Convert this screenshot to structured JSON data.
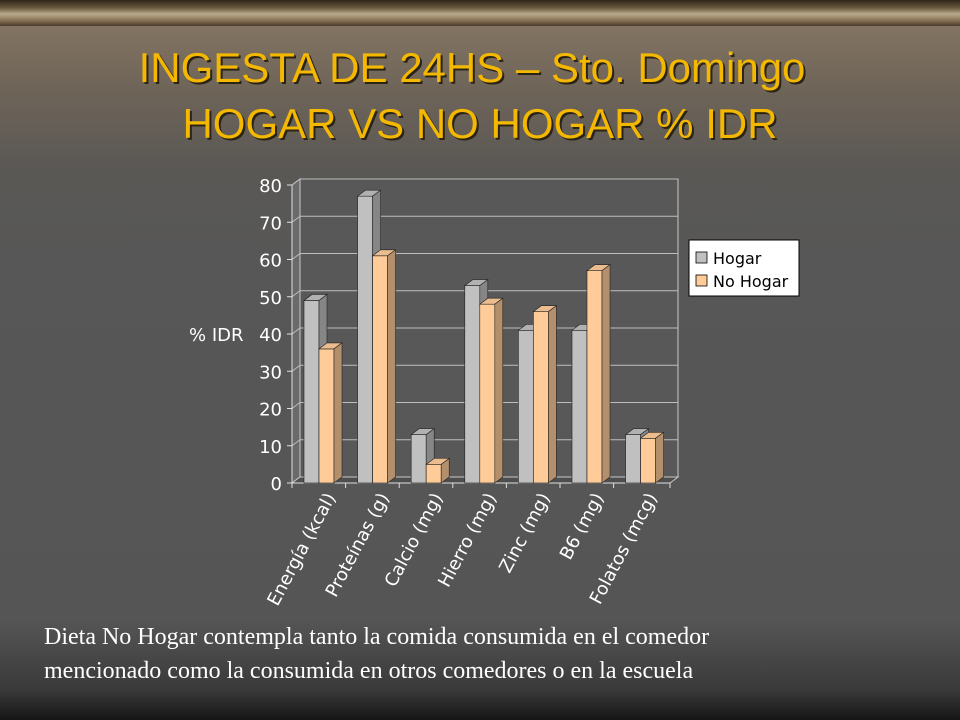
{
  "slide": {
    "title_line1": "INGESTA DE 24HS – Sto. Domingo",
    "title_line2": "HOGAR VS NO HOGAR % IDR",
    "footnote_line1": "Dieta No Hogar contempla tanto la comida consumida  en el comedor",
    "footnote_line2": "mencionado  como la consumida  en otros comedores o en la escuela"
  },
  "chart_data": {
    "type": "bar",
    "ylabel": "% IDR",
    "xlabel": "",
    "title": "",
    "ylim": [
      0,
      80
    ],
    "yticks": [
      "0",
      "10",
      "20",
      "30",
      "40",
      "50",
      "60",
      "70",
      "80"
    ],
    "categories": [
      "Energía (kcal)",
      "Proteínas (g)",
      "Calcio (mg)",
      "Hierro (mg)",
      "Zinc (mg)",
      "B6 (mg)",
      "Folatos (mcg)"
    ],
    "series": [
      {
        "name": "Hogar",
        "values": [
          49,
          77,
          13,
          53,
          41,
          41,
          13
        ],
        "color": "#c0c0c0"
      },
      {
        "name": "No Hogar",
        "values": [
          36,
          61,
          5,
          48,
          46,
          57,
          12
        ],
        "color": "#ffcc99"
      }
    ],
    "legend_position": "right",
    "grid": true,
    "style": "3d-bar"
  }
}
